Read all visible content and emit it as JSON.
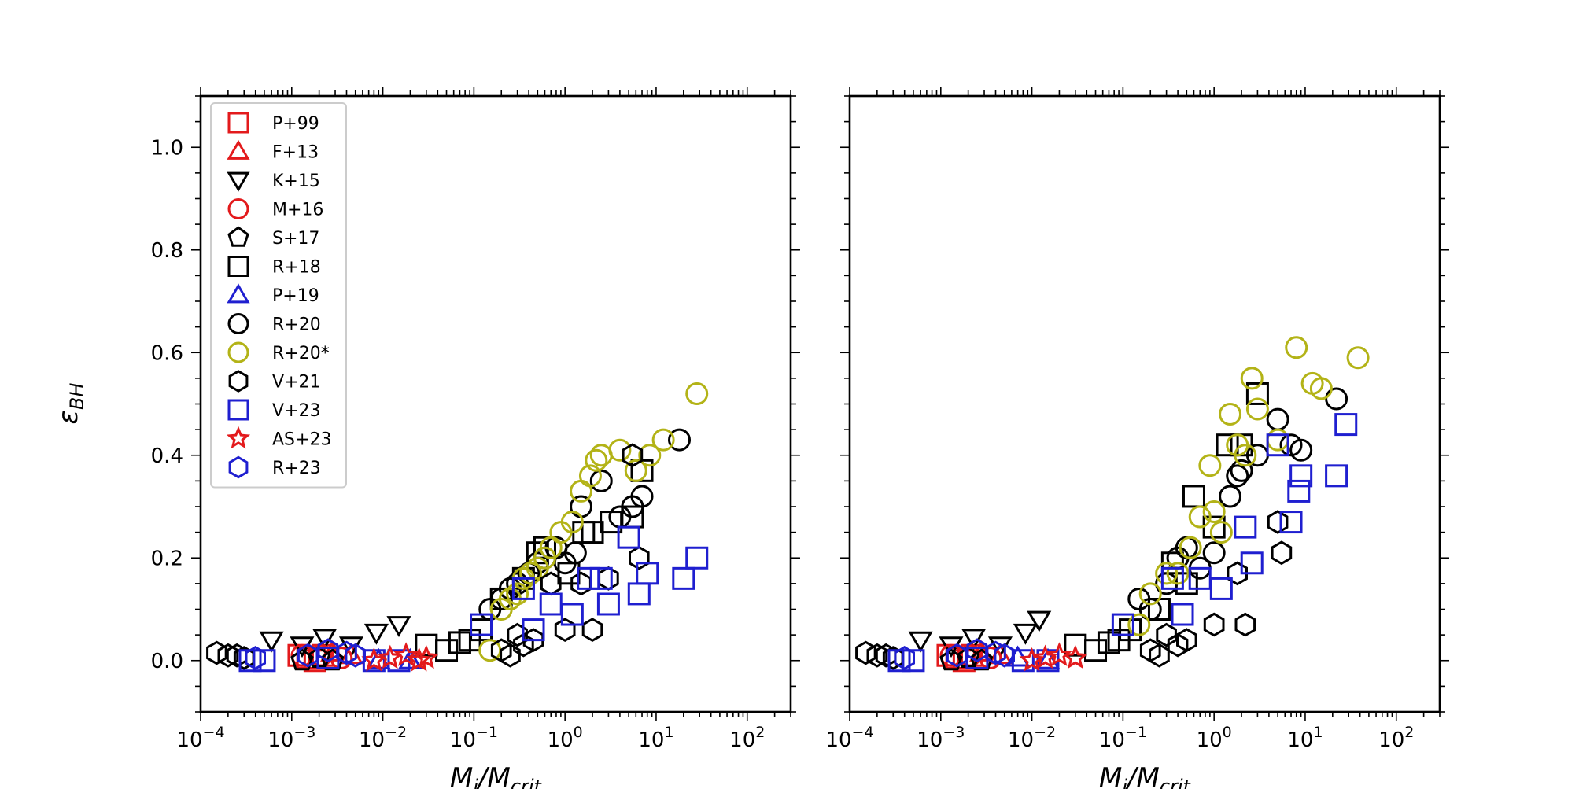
{
  "chart_data": {
    "type": "scatter",
    "ylabel": "εBH",
    "xscale": "log",
    "xlim": [
      0.0001,
      300
    ],
    "ylim": [
      -0.1,
      1.1
    ],
    "yticks": [
      0.0,
      0.2,
      0.4,
      0.6,
      0.8,
      1.0
    ],
    "ytick_labels": [
      "0.0",
      "0.2",
      "0.4",
      "0.6",
      "0.8",
      "1.0"
    ],
    "xtick_exponents": [
      -4,
      -3,
      -2,
      -1,
      0,
      1,
      2
    ],
    "xtick_labels": [
      "10−4",
      "10−3",
      "10−2",
      "10−1",
      "100",
      "101",
      "102"
    ],
    "grid": false,
    "legend_location": "upper-left",
    "legend_panel": 0,
    "styles": {
      "P+99": {
        "marker": "square",
        "color": "#e31a1c"
      },
      "F+13": {
        "marker": "triangle-up",
        "color": "#e31a1c"
      },
      "K+15": {
        "marker": "triangle-down",
        "color": "#000000"
      },
      "M+16": {
        "marker": "circle",
        "color": "#e31a1c"
      },
      "S+17": {
        "marker": "pentagon",
        "color": "#000000"
      },
      "R+18": {
        "marker": "square",
        "color": "#000000"
      },
      "P+19": {
        "marker": "triangle-up",
        "color": "#1f1fd0"
      },
      "R+20": {
        "marker": "circle",
        "color": "#000000"
      },
      "R+20*": {
        "marker": "circle",
        "color": "#b3b317"
      },
      "V+21": {
        "marker": "hexagon",
        "color": "#000000"
      },
      "V+23": {
        "marker": "square",
        "color": "#1f1fd0"
      },
      "AS+23": {
        "marker": "star",
        "color": "#e31a1c"
      },
      "R+23": {
        "marker": "hexagon",
        "color": "#1f1fd0"
      }
    },
    "legend": [
      "P+99",
      "F+13",
      "K+15",
      "M+16",
      "S+17",
      "R+18",
      "P+19",
      "R+20",
      "R+20*",
      "V+21",
      "V+23",
      "AS+23",
      "R+23"
    ],
    "panels": [
      {
        "xlabel": "Mi/Mcrit",
        "series": [
          {
            "name": "P+99",
            "x": [
              0.0012,
              0.0015,
              0.0018,
              0.0022
            ],
            "y": [
              0.01,
              0.005,
              0.0,
              0.01
            ]
          },
          {
            "name": "F+13",
            "x": [
              0.0028,
              0.0045
            ],
            "y": [
              0.015,
              0.01
            ]
          },
          {
            "name": "K+15",
            "x": [
              0.0006,
              0.0013,
              0.0023,
              0.0045,
              0.0085,
              0.015
            ],
            "y": [
              0.04,
              0.03,
              0.045,
              0.03,
              0.055,
              0.07
            ]
          },
          {
            "name": "M+16",
            "x": [
              0.0013,
              0.0021,
              0.0035
            ],
            "y": [
              0.01,
              0.01,
              0.005
            ]
          },
          {
            "name": "S+17",
            "x": [
              0.0013,
              0.002,
              0.0028
            ],
            "y": [
              0.0,
              0.005,
              0.0
            ]
          },
          {
            "name": "R+18",
            "x": [
              0.03,
              0.05,
              0.07,
              0.09,
              0.12,
              0.2,
              0.35,
              0.5,
              0.6,
              1.1,
              1.6,
              2.0,
              3.2,
              5.5,
              7.0
            ],
            "y": [
              0.03,
              0.02,
              0.035,
              0.04,
              0.06,
              0.12,
              0.16,
              0.21,
              0.22,
              0.17,
              0.25,
              0.25,
              0.27,
              0.28,
              0.37
            ]
          },
          {
            "name": "P+19",
            "x": [
              0.009,
              0.02
            ],
            "y": [
              0.0,
              0.0
            ]
          },
          {
            "name": "R+20",
            "x": [
              0.15,
              0.2,
              0.25,
              0.3,
              0.4,
              0.5,
              0.6,
              0.8,
              1.0,
              1.3,
              1.5,
              2.5,
              4.0,
              5.5,
              7.0,
              18.0
            ],
            "y": [
              0.1,
              0.12,
              0.14,
              0.15,
              0.17,
              0.19,
              0.2,
              0.22,
              0.19,
              0.21,
              0.3,
              0.35,
              0.28,
              0.3,
              0.32,
              0.43
            ]
          },
          {
            "name": "R+20*",
            "x": [
              0.15,
              0.2,
              0.25,
              0.3,
              0.35,
              0.42,
              0.5,
              0.6,
              0.7,
              0.9,
              1.2,
              1.5,
              1.9,
              2.2,
              2.5,
              4.0,
              6.0,
              8.5,
              12.0,
              28.0
            ],
            "y": [
              0.02,
              0.1,
              0.12,
              0.13,
              0.16,
              0.17,
              0.18,
              0.2,
              0.22,
              0.25,
              0.27,
              0.33,
              0.36,
              0.39,
              0.4,
              0.41,
              0.37,
              0.4,
              0.43,
              0.52
            ]
          },
          {
            "name": "V+21",
            "x": [
              0.00015,
              0.0002,
              0.00025,
              0.0003,
              0.2,
              0.25,
              0.3,
              0.35,
              0.45,
              0.7,
              1.0,
              1.5,
              2.0,
              3.0,
              5.5,
              6.5
            ],
            "y": [
              0.015,
              0.01,
              0.01,
              0.005,
              0.02,
              0.01,
              0.05,
              0.03,
              0.04,
              0.15,
              0.06,
              0.15,
              0.06,
              0.16,
              0.4,
              0.2
            ]
          },
          {
            "name": "V+23",
            "x": [
              0.00035,
              0.0005,
              0.0025,
              0.008,
              0.015,
              0.12,
              0.35,
              0.45,
              0.7,
              1.2,
              1.8,
              2.5,
              3.0,
              5.0,
              6.5,
              8.0,
              20.0,
              28.0
            ],
            "y": [
              0.0,
              0.0,
              0.005,
              0.0,
              0.0,
              0.07,
              0.14,
              0.06,
              0.11,
              0.09,
              0.16,
              0.16,
              0.11,
              0.24,
              0.13,
              0.17,
              0.16,
              0.2
            ]
          },
          {
            "name": "AS+23",
            "x": [
              0.008,
              0.012,
              0.018,
              0.025,
              0.03
            ],
            "y": [
              0.0,
              0.005,
              0.01,
              0.0,
              0.005
            ]
          },
          {
            "name": "R+23",
            "x": [
              0.0004,
              0.0015,
              0.0025,
              0.004,
              0.005
            ],
            "y": [
              0.005,
              0.01,
              0.02,
              0.015,
              0.01
            ]
          }
        ]
      },
      {
        "xlabel": "Mi/Mcrit",
        "series": [
          {
            "name": "P+99",
            "x": [
              0.0012,
              0.0015,
              0.0018,
              0.0022
            ],
            "y": [
              0.01,
              0.005,
              0.0,
              0.01
            ]
          },
          {
            "name": "F+13",
            "x": [
              0.0028,
              0.0045
            ],
            "y": [
              0.015,
              0.01
            ]
          },
          {
            "name": "K+15",
            "x": [
              0.0006,
              0.0013,
              0.0023,
              0.0045,
              0.0085,
              0.012
            ],
            "y": [
              0.04,
              0.03,
              0.045,
              0.03,
              0.055,
              0.08
            ]
          },
          {
            "name": "M+16",
            "x": [
              0.0013,
              0.0021,
              0.0035
            ],
            "y": [
              0.01,
              0.01,
              0.005
            ]
          },
          {
            "name": "S+17",
            "x": [
              0.0013,
              0.002,
              0.0028
            ],
            "y": [
              0.0,
              0.005,
              0.0
            ]
          },
          {
            "name": "R+18",
            "x": [
              0.03,
              0.05,
              0.07,
              0.09,
              0.12,
              0.25,
              0.35,
              0.5,
              0.6,
              1.0,
              1.4,
              2.0,
              3.0
            ],
            "y": [
              0.03,
              0.02,
              0.035,
              0.04,
              0.06,
              0.1,
              0.19,
              0.15,
              0.32,
              0.26,
              0.42,
              0.42,
              0.52
            ]
          },
          {
            "name": "P+19",
            "x": [
              0.007,
              0.015
            ],
            "y": [
              0.005,
              0.0
            ]
          },
          {
            "name": "R+20",
            "x": [
              0.15,
              0.2,
              0.3,
              0.4,
              0.5,
              0.7,
              1.0,
              1.5,
              1.8,
              2.0,
              3.0,
              5.0,
              7.0,
              9.0,
              22.0
            ],
            "y": [
              0.12,
              0.1,
              0.15,
              0.2,
              0.22,
              0.18,
              0.21,
              0.32,
              0.36,
              0.37,
              0.4,
              0.47,
              0.42,
              0.41,
              0.51
            ]
          },
          {
            "name": "R+20*",
            "x": [
              0.15,
              0.2,
              0.3,
              0.4,
              0.55,
              0.7,
              0.9,
              1.0,
              1.2,
              1.5,
              1.8,
              2.2,
              2.6,
              3.0,
              5.0,
              8.0,
              12.0,
              15.0,
              38.0
            ],
            "y": [
              0.07,
              0.13,
              0.17,
              0.17,
              0.22,
              0.28,
              0.38,
              0.29,
              0.25,
              0.48,
              0.42,
              0.4,
              0.55,
              0.49,
              0.43,
              0.61,
              0.54,
              0.53,
              0.59
            ]
          },
          {
            "name": "V+21",
            "x": [
              0.00015,
              0.0002,
              0.00025,
              0.0003,
              0.2,
              0.25,
              0.3,
              0.4,
              0.5,
              1.0,
              1.8,
              2.2,
              5.0,
              5.5
            ],
            "y": [
              0.015,
              0.01,
              0.01,
              0.005,
              0.02,
              0.01,
              0.05,
              0.03,
              0.04,
              0.07,
              0.17,
              0.07,
              0.27,
              0.21
            ]
          },
          {
            "name": "V+23",
            "x": [
              0.00035,
              0.0005,
              0.0025,
              0.008,
              0.015,
              0.1,
              0.35,
              0.45,
              0.7,
              1.2,
              2.2,
              2.6,
              5.0,
              7.0,
              8.5,
              9.0,
              22.0,
              28.0
            ],
            "y": [
              0.0,
              0.0,
              0.005,
              0.0,
              0.0,
              0.07,
              0.16,
              0.09,
              0.16,
              0.14,
              0.26,
              0.19,
              0.42,
              0.27,
              0.33,
              0.36,
              0.36,
              0.46
            ]
          },
          {
            "name": "AS+23",
            "x": [
              0.01,
              0.014,
              0.02,
              0.03
            ],
            "y": [
              0.0,
              0.005,
              0.01,
              0.005
            ]
          },
          {
            "name": "R+23",
            "x": [
              0.0004,
              0.0015,
              0.0025,
              0.004,
              0.005
            ],
            "y": [
              0.005,
              0.01,
              0.02,
              0.015,
              0.01
            ]
          }
        ]
      }
    ]
  }
}
